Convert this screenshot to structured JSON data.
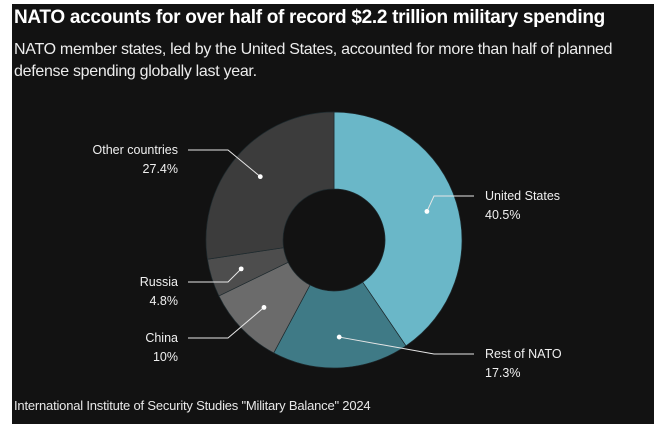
{
  "header": {
    "title": "NATO accounts for over half of record $2.2 trillion military spending",
    "subtitle": "NATO member states, led by the United States, accounted for more than half of planned defense spending globally last year."
  },
  "footer": {
    "source": "International Institute of Security Studies \"Military Balance\" 2024"
  },
  "chart_data": {
    "type": "pie",
    "donut": true,
    "title": "NATO accounts for over half of record $2.2 trillion military spending",
    "subtitle": "NATO member states, led by the United States, accounted for more than half of planned defense spending globally last year.",
    "unit": "%",
    "slices": [
      {
        "label": "United States",
        "value": 40.5,
        "value_label": "40.5%",
        "color": "#6ab7c8",
        "label_side": "right"
      },
      {
        "label": "Rest of NATO",
        "value": 17.3,
        "value_label": "17.3%",
        "color": "#3f7a86",
        "label_side": "right"
      },
      {
        "label": "China",
        "value": 10,
        "value_label": "10%",
        "color": "#6b6b6b",
        "label_side": "left"
      },
      {
        "label": "Russia",
        "value": 4.8,
        "value_label": "4.8%",
        "color": "#4d4d4d",
        "label_side": "left"
      },
      {
        "label": "Other countries",
        "value": 27.4,
        "value_label": "27.4%",
        "color": "#3c3c3c",
        "label_side": "left"
      }
    ],
    "start": "top, clockwise"
  }
}
